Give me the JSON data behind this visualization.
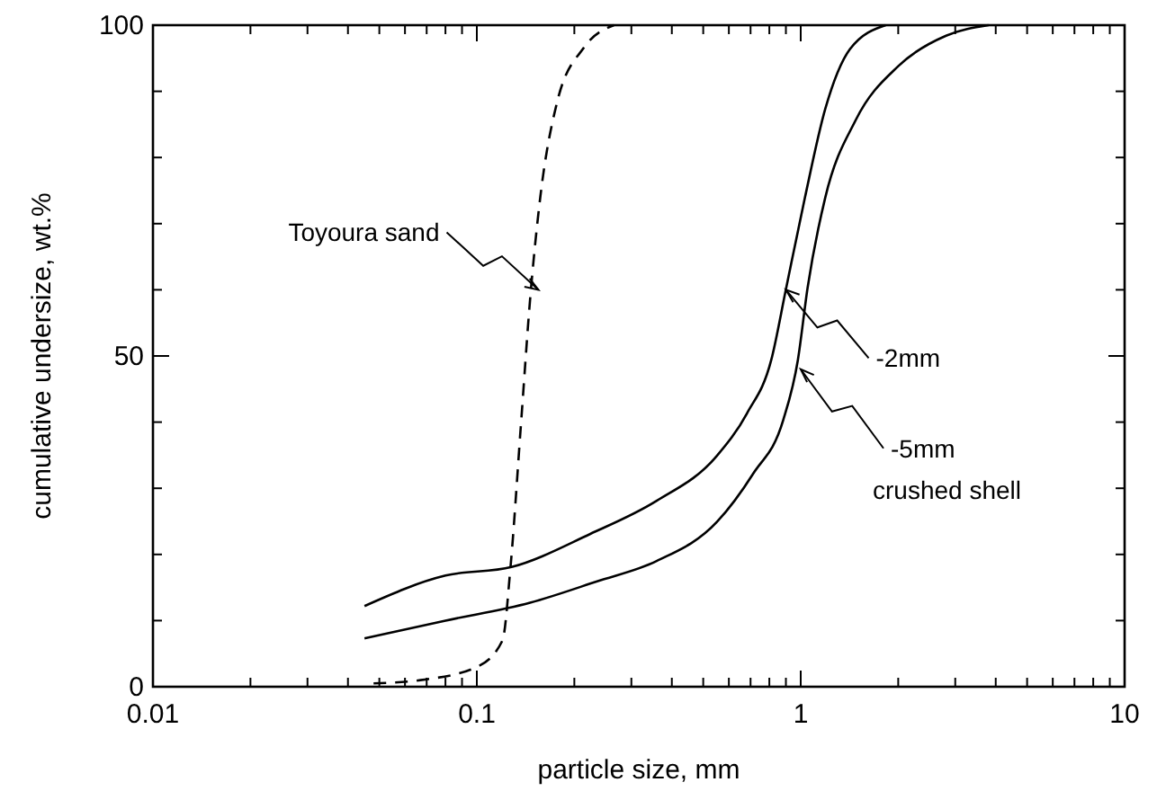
{
  "chart_data": {
    "type": "line",
    "xlabel": "particle size, mm",
    "ylabel": "cumulative undersize, wt.%",
    "log": "x",
    "xlim": [
      0.01,
      10
    ],
    "ylim": [
      0,
      100
    ],
    "xticks": [
      0.01,
      {
        "value": 0.02,
        "label": null
      },
      {
        "value": 0.03,
        "label": null
      },
      {
        "value": 0.04,
        "label": null
      },
      {
        "value": 0.05,
        "label": null
      },
      {
        "value": 0.06,
        "label": null
      },
      {
        "value": 0.07,
        "label": null
      },
      {
        "value": 0.08,
        "label": null
      },
      {
        "value": 0.09,
        "label": null
      },
      0.1,
      {
        "value": 0.2,
        "label": null
      },
      {
        "value": 0.3,
        "label": null
      },
      {
        "value": 0.4,
        "label": null
      },
      {
        "value": 0.5,
        "label": null
      },
      {
        "value": 0.6,
        "label": null
      },
      {
        "value": 0.7,
        "label": null
      },
      {
        "value": 0.8,
        "label": null
      },
      {
        "value": 0.9,
        "label": null
      },
      1,
      {
        "value": 2,
        "label": null
      },
      {
        "value": 3,
        "label": null
      },
      {
        "value": 4,
        "label": null
      },
      {
        "value": 5,
        "label": null
      },
      {
        "value": 6,
        "label": null
      },
      {
        "value": 7,
        "label": null
      },
      {
        "value": 8,
        "label": null
      },
      {
        "value": 9,
        "label": null
      },
      10
    ],
    "yticks": [
      0,
      {
        "value": 10,
        "label": null
      },
      {
        "value": 20,
        "label": null
      },
      {
        "value": 30,
        "label": null
      },
      {
        "value": 40,
        "label": null
      },
      50,
      {
        "value": 60,
        "label": null
      },
      {
        "value": 70,
        "label": null
      },
      {
        "value": 80,
        "label": null
      },
      {
        "value": 90,
        "label": null
      },
      100
    ],
    "marker": "none",
    "series": [
      {
        "color": "#000000",
        "line_style": "dashed",
        "x": [
          0.048,
          0.067,
          0.1,
          0.12,
          0.127,
          0.137,
          0.146,
          0.157,
          0.177,
          0.214,
          0.265
        ],
        "values": [
          0.5,
          1,
          3,
          7,
          18,
          40,
          58.5,
          74,
          88.4,
          96.6,
          100
        ]
      },
      {
        "color": "#000000",
        "line_style": "solid",
        "x": [
          0.045,
          0.08,
          0.128,
          0.224,
          0.359,
          0.551,
          0.682,
          0.811,
          0.902,
          1.03,
          1.19,
          1.42,
          1.83
        ],
        "values": [
          12.2,
          16.8,
          18.1,
          23.1,
          28.1,
          34.9,
          41.3,
          49.4,
          60.3,
          73.9,
          87.3,
          96.4,
          100
        ]
      },
      {
        "color": "#000000",
        "line_style": "solid",
        "x": [
          0.045,
          0.08,
          0.146,
          0.234,
          0.359,
          0.551,
          0.713,
          0.883,
          0.98,
          1.05,
          1.19,
          1.48,
          2.0,
          2.81,
          3.8
        ],
        "values": [
          7.3,
          10,
          12.7,
          15.9,
          19,
          24.9,
          32.2,
          40.3,
          49.4,
          60.3,
          73.9,
          85.7,
          93.8,
          98.4,
          100
        ]
      }
    ],
    "annotations": [
      {
        "text": "Toyoura sand",
        "x": 0.155,
        "y": 60
      },
      {
        "text": "-2mm",
        "x": 0.9,
        "y": 60
      },
      {
        "text": "-5mm",
        "x": 1.0,
        "y": 48
      },
      "crushed shell"
    ]
  }
}
